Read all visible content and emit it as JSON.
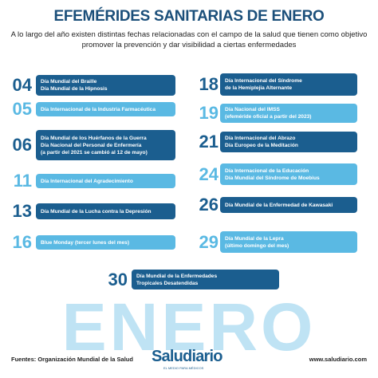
{
  "header": {
    "title": "EFEMÉRIDES SANITARIAS DE ENERO",
    "subtitle": [
      "A lo largo del año existen distintas fechas relacionadas con el campo de la salud que tienen como objetivo",
      "promover la prevención y dar visibilidad a ciertas enfermedades"
    ]
  },
  "items": [
    {
      "day": "04",
      "lines": [
        "Día Mundial del Braille",
        "Día Mundial de la Hipnosis"
      ]
    },
    {
      "day": "05",
      "lines": [
        "Día Internacional de la Industria Farmacéutica"
      ]
    },
    {
      "day": "06",
      "lines": [
        "Día Mundial de los Huérfanos de la Guerra",
        "Día Nacional del Personal de Enfermería",
        "(a partir del 2021 se cambió al 12 de mayo)"
      ]
    },
    {
      "day": "11",
      "lines": [
        "Día Internacional del Agradecimiento"
      ]
    },
    {
      "day": "13",
      "lines": [
        "Día Mundial de la Lucha contra la Depresión"
      ]
    },
    {
      "day": "16",
      "lines": [
        "Blue Monday (tercer lunes del mes)"
      ]
    },
    {
      "day": "18",
      "lines": [
        "Día Internacional del Síndrome",
        "de la Hemiplejia Alternante"
      ]
    },
    {
      "day": "19",
      "lines": [
        "Día Nacional del IMSS",
        "(efeméride oficial a partir del 2023)"
      ]
    },
    {
      "day": "21",
      "lines": [
        "Día Internacional del Abrazo",
        "Día Europeo de la Meditación"
      ]
    },
    {
      "day": "24",
      "lines": [
        "Día Internacional de la Educación",
        "Día Mundial del Síndrome de Moebius"
      ]
    },
    {
      "day": "26",
      "lines": [
        "Día Mundial de la Enfermedad de Kawasaki"
      ]
    },
    {
      "day": "29",
      "lines": [
        "Día Mundial de la Lepra",
        "(último domingo del mes)"
      ]
    },
    {
      "day": "30",
      "lines": [
        "Día Mundial de la Enfermedades",
        "Tropicales Desatendidas"
      ]
    }
  ],
  "month": "ENERO",
  "footer": {
    "source": "Fuentes: Organización Mundial de la Salud",
    "brand": "Saludiario",
    "tagline": "EL MEDIO PARA MÉDICOS",
    "url": "www.saludiario.com"
  }
}
